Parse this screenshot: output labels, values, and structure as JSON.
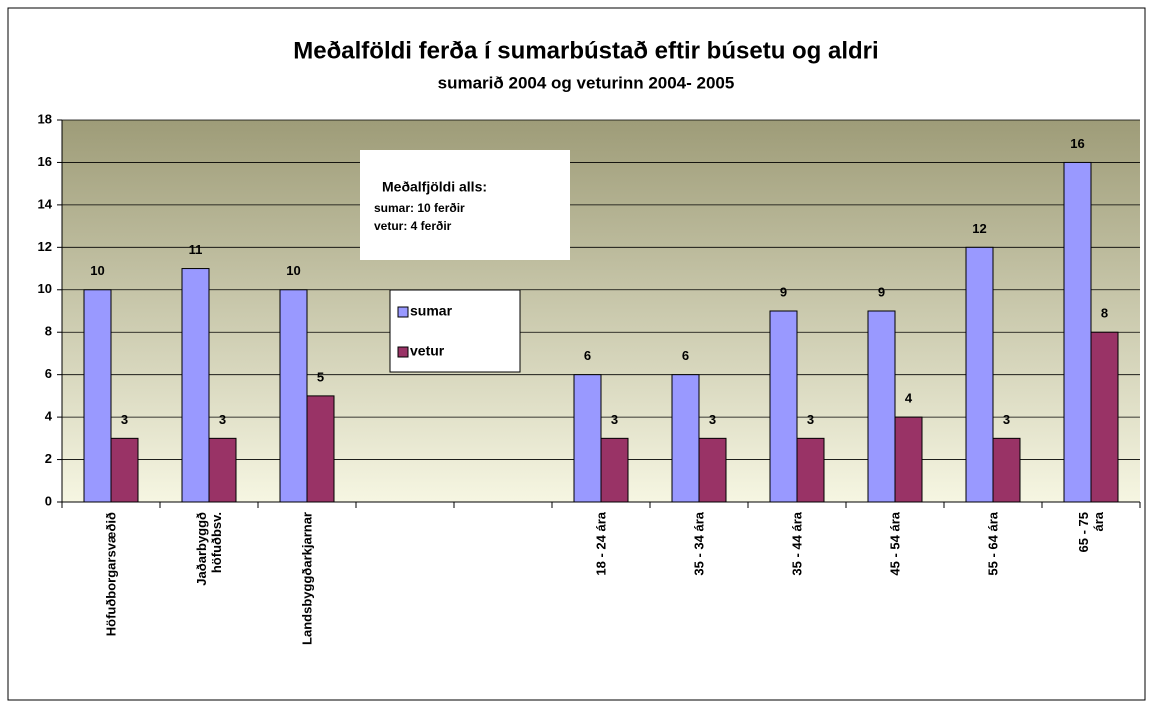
{
  "chart_data": {
    "type": "bar",
    "title": "Meðalföldi ferða í sumarbústað eftir búsetu og aldri",
    "subtitle": "sumarið 2004 og veturinn 2004- 2005",
    "annotation": [
      "Meðalfjöldi alls:",
      "sumar:  10 ferðir",
      "vetur:  4 ferðir"
    ],
    "categories": [
      "Höfuðborgarsvæðið",
      "Jaðarbyggð\nhöfuðbsv.",
      "Landsbyggðarkjarnar",
      null,
      null,
      "18 - 24 ára",
      "35 - 34 ára",
      "35 - 44 ára",
      "45 - 54 ára",
      "55 - 64 ára",
      "65 - 75 ára"
    ],
    "series": [
      {
        "name": "sumar",
        "color": "#9999ff",
        "values": [
          10,
          11,
          10,
          null,
          null,
          6,
          6,
          9,
          9,
          12,
          16
        ]
      },
      {
        "name": "vetur",
        "color": "#993366",
        "values": [
          3,
          3,
          5,
          null,
          null,
          3,
          3,
          3,
          4,
          3,
          8
        ]
      }
    ],
    "ylim": [
      0,
      18
    ],
    "yticks": [
      0,
      2,
      4,
      6,
      8,
      10,
      12,
      14,
      16,
      18
    ],
    "grid": true
  }
}
